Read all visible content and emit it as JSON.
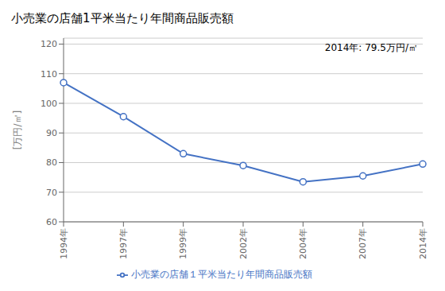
{
  "chart_data": {
    "type": "line",
    "title": "小売業の店舗1平米当たり年間商品販売額",
    "y_label": "[万円/㎡]",
    "annotation": "2014年: 79.5万円/㎡",
    "categories": [
      "1994年",
      "1997年",
      "1999年",
      "2002年",
      "2004年",
      "2007年",
      "2014年"
    ],
    "series": [
      {
        "name": "小売業の店舗１平米当たり年間商品販売額",
        "color": "#4472C4",
        "marker": "circle",
        "values": [
          107.0,
          95.5,
          83.0,
          79.0,
          73.5,
          75.5,
          79.5
        ]
      }
    ],
    "ylim": [
      60,
      122
    ],
    "yticks": [
      60,
      70,
      80,
      90,
      100,
      110,
      120
    ],
    "grid": true,
    "legend": "bottom"
  }
}
